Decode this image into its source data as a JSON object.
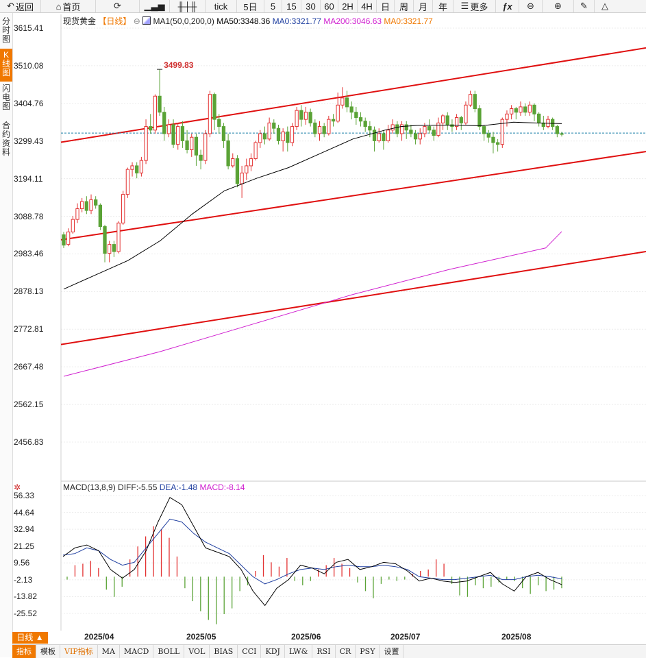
{
  "toolbar": {
    "back": "返回",
    "home": "首页",
    "tick": "tick",
    "p5d": "5日",
    "m5": "5",
    "m15": "15",
    "m30": "30",
    "m60": "60",
    "h2": "2H",
    "h4": "4H",
    "day": "日",
    "week": "周",
    "month": "月",
    "year": "年",
    "more": "更多"
  },
  "sidebar": {
    "timeshare": "分时图",
    "kline": "K线图",
    "flash": "闪电图",
    "contract": "合约资料"
  },
  "main_legend": {
    "symbol": "现货黄金",
    "period": "【日线】",
    "ma1": "MA1(50,0,200,0)",
    "ma50": "MA50:3348.36",
    "ma0": "MA0:3321.77",
    "ma200": "MA200:3046.63",
    "ma0b": "MA0:3321.77"
  },
  "macd_legend": {
    "name": "MACD(13,8,9)",
    "diff": "DIFF:-5.55",
    "dea": "DEA:-1.48",
    "macd": "MACD:-8.14"
  },
  "price_axis": [
    "3615.41",
    "3510.08",
    "3404.76",
    "3299.43",
    "3194.11",
    "3088.78",
    "2983.46",
    "2878.13",
    "2772.81",
    "2667.48",
    "2562.15",
    "2456.83"
  ],
  "macd_axis": [
    "56.33",
    "44.64",
    "32.94",
    "21.25",
    "9.56",
    "-2.13",
    "-13.82",
    "-25.52"
  ],
  "annotations": {
    "high": "3499.83"
  },
  "dates": [
    "2025/04",
    "2025/05",
    "2025/06",
    "2025/07",
    "2025/08"
  ],
  "range_button": "日线 ▲",
  "bottom_tabs": [
    "指标",
    "模板",
    "VIP指标",
    "MA",
    "MACD",
    "BOLL",
    "VOL",
    "BIAS",
    "CCI",
    "KDJ",
    "LW&",
    "RSI",
    "CR",
    "PSY",
    "设置"
  ],
  "colors": {
    "up": "#e33030",
    "down": "#5aa336",
    "accent": "#f07800",
    "ma50": "#000000",
    "ma200": "#d020d0",
    "dea": "#1f3fa0",
    "channel": "#e01010"
  },
  "chart_data": {
    "type": "candlestick",
    "symbol": "现货黄金",
    "ylim": [
      2400,
      3640
    ],
    "candles": [
      [
        3037,
        3008,
        3045,
        3000
      ],
      [
        3010,
        3045,
        3055,
        3005
      ],
      [
        3045,
        3080,
        3090,
        3040
      ],
      [
        3080,
        3110,
        3125,
        3070
      ],
      [
        3110,
        3130,
        3140,
        3100
      ],
      [
        3130,
        3105,
        3145,
        3095
      ],
      [
        3105,
        3135,
        3150,
        3095
      ],
      [
        3135,
        3120,
        3145,
        3110
      ],
      [
        3120,
        3060,
        3125,
        3050
      ],
      [
        3060,
        2985,
        3065,
        2960
      ],
      [
        2985,
        3010,
        3020,
        2960
      ],
      [
        3010,
        2990,
        3020,
        2975
      ],
      [
        2990,
        3070,
        3075,
        2985
      ],
      [
        3070,
        3150,
        3160,
        3065
      ],
      [
        3150,
        3220,
        3225,
        3140
      ],
      [
        3220,
        3230,
        3240,
        3200
      ],
      [
        3230,
        3210,
        3240,
        3195
      ],
      [
        3210,
        3245,
        3255,
        3200
      ],
      [
        3245,
        3340,
        3360,
        3235
      ],
      [
        3340,
        3330,
        3375,
        3320
      ],
      [
        3330,
        3425,
        3430,
        3320
      ],
      [
        3425,
        3380,
        3500,
        3370
      ],
      [
        3380,
        3320,
        3395,
        3300
      ],
      [
        3320,
        3345,
        3360,
        3310
      ],
      [
        3345,
        3290,
        3360,
        3280
      ],
      [
        3290,
        3340,
        3350,
        3275
      ],
      [
        3340,
        3300,
        3355,
        3280
      ],
      [
        3300,
        3275,
        3330,
        3265
      ],
      [
        3275,
        3310,
        3320,
        3255
      ],
      [
        3310,
        3260,
        3320,
        3230
      ],
      [
        3260,
        3245,
        3275,
        3220
      ],
      [
        3245,
        3320,
        3330,
        3235
      ],
      [
        3320,
        3430,
        3440,
        3310
      ],
      [
        3430,
        3360,
        3435,
        3330
      ],
      [
        3360,
        3340,
        3375,
        3320
      ],
      [
        3340,
        3300,
        3350,
        3280
      ],
      [
        3300,
        3230,
        3320,
        3220
      ],
      [
        3230,
        3250,
        3265,
        3225
      ],
      [
        3250,
        3180,
        3260,
        3170
      ],
      [
        3180,
        3210,
        3230,
        3140
      ],
      [
        3210,
        3230,
        3250,
        3190
      ],
      [
        3230,
        3250,
        3265,
        3215
      ],
      [
        3250,
        3295,
        3300,
        3245
      ],
      [
        3295,
        3320,
        3330,
        3280
      ],
      [
        3320,
        3305,
        3340,
        3290
      ],
      [
        3305,
        3350,
        3365,
        3300
      ],
      [
        3350,
        3335,
        3360,
        3320
      ],
      [
        3335,
        3300,
        3345,
        3290
      ],
      [
        3300,
        3325,
        3335,
        3270
      ],
      [
        3325,
        3295,
        3340,
        3270
      ],
      [
        3295,
        3340,
        3350,
        3285
      ],
      [
        3340,
        3385,
        3395,
        3330
      ],
      [
        3385,
        3360,
        3400,
        3340
      ],
      [
        3360,
        3380,
        3395,
        3345
      ],
      [
        3380,
        3350,
        3390,
        3340
      ],
      [
        3350,
        3320,
        3360,
        3310
      ],
      [
        3320,
        3340,
        3355,
        3300
      ],
      [
        3340,
        3320,
        3350,
        3310
      ],
      [
        3320,
        3360,
        3370,
        3315
      ],
      [
        3360,
        3355,
        3375,
        3340
      ],
      [
        3355,
        3400,
        3435,
        3350
      ],
      [
        3400,
        3420,
        3450,
        3390
      ],
      [
        3420,
        3395,
        3440,
        3380
      ],
      [
        3395,
        3380,
        3410,
        3360
      ],
      [
        3380,
        3365,
        3395,
        3345
      ],
      [
        3365,
        3355,
        3380,
        3340
      ],
      [
        3355,
        3340,
        3365,
        3325
      ],
      [
        3340,
        3330,
        3355,
        3310
      ],
      [
        3330,
        3300,
        3340,
        3270
      ],
      [
        3300,
        3320,
        3335,
        3295
      ],
      [
        3320,
        3300,
        3330,
        3275
      ],
      [
        3300,
        3330,
        3345,
        3295
      ],
      [
        3330,
        3345,
        3360,
        3320
      ],
      [
        3345,
        3320,
        3355,
        3310
      ],
      [
        3320,
        3345,
        3355,
        3300
      ],
      [
        3345,
        3330,
        3355,
        3305
      ],
      [
        3330,
        3320,
        3345,
        3310
      ],
      [
        3320,
        3305,
        3330,
        3290
      ],
      [
        3305,
        3320,
        3335,
        3290
      ],
      [
        3320,
        3340,
        3350,
        3310
      ],
      [
        3340,
        3330,
        3360,
        3320
      ],
      [
        3330,
        3315,
        3340,
        3300
      ],
      [
        3315,
        3350,
        3365,
        3310
      ],
      [
        3350,
        3370,
        3375,
        3330
      ],
      [
        3370,
        3345,
        3380,
        3330
      ],
      [
        3345,
        3340,
        3360,
        3325
      ],
      [
        3340,
        3365,
        3375,
        3330
      ],
      [
        3365,
        3350,
        3370,
        3330
      ],
      [
        3350,
        3400,
        3410,
        3345
      ],
      [
        3400,
        3430,
        3440,
        3395
      ],
      [
        3430,
        3390,
        3440,
        3380
      ],
      [
        3390,
        3340,
        3400,
        3330
      ],
      [
        3340,
        3320,
        3345,
        3300
      ],
      [
        3320,
        3310,
        3330,
        3295
      ],
      [
        3310,
        3295,
        3325,
        3265
      ],
      [
        3295,
        3290,
        3305,
        3270
      ],
      [
        3290,
        3360,
        3365,
        3280
      ],
      [
        3360,
        3375,
        3385,
        3340
      ],
      [
        3375,
        3390,
        3400,
        3360
      ],
      [
        3390,
        3380,
        3395,
        3360
      ],
      [
        3380,
        3395,
        3410,
        3370
      ],
      [
        3395,
        3380,
        3405,
        3370
      ],
      [
        3380,
        3400,
        3410,
        3370
      ],
      [
        3400,
        3375,
        3405,
        3355
      ],
      [
        3375,
        3350,
        3380,
        3340
      ],
      [
        3350,
        3340,
        3370,
        3330
      ],
      [
        3340,
        3360,
        3370,
        3335
      ],
      [
        3360,
        3340,
        3365,
        3330
      ],
      [
        3340,
        3320,
        3345,
        3310
      ],
      [
        3320,
        3318,
        3325,
        3312
      ]
    ],
    "ma50": [
      [
        0,
        2885
      ],
      [
        10,
        2925
      ],
      [
        20,
        2965
      ],
      [
        30,
        3020
      ],
      [
        40,
        3095
      ],
      [
        50,
        3160
      ],
      [
        60,
        3195
      ],
      [
        70,
        3225
      ],
      [
        80,
        3265
      ],
      [
        90,
        3305
      ],
      [
        100,
        3330
      ],
      [
        105,
        3340
      ],
      [
        110,
        3343
      ],
      [
        120,
        3344
      ],
      [
        130,
        3342
      ],
      [
        140,
        3352
      ],
      [
        147,
        3350
      ],
      [
        155,
        3348
      ]
    ],
    "ma200": [
      [
        0,
        2641
      ],
      [
        30,
        2710
      ],
      [
        60,
        2790
      ],
      [
        90,
        2870
      ],
      [
        120,
        2940
      ],
      [
        150,
        3000
      ],
      [
        155,
        3046
      ]
    ],
    "ma0_value": 3321.77,
    "channel_lines": [
      {
        "from": [
          89,
          3296
        ],
        "to": [
          943,
          3560
        ]
      },
      {
        "from": [
          89,
          3023
        ],
        "to": [
          943,
          3270
        ]
      },
      {
        "from": [
          89,
          2730
        ],
        "to": [
          943,
          2990
        ]
      }
    ],
    "macd": {
      "ylim": [
        -34,
        62
      ],
      "diff": [
        [
          0,
          14.0
        ],
        [
          5,
          20.0
        ],
        [
          10,
          22.0
        ],
        [
          15,
          18.0
        ],
        [
          20,
          5.0
        ],
        [
          25,
          -1.0
        ],
        [
          30,
          5.0
        ],
        [
          35,
          18.0
        ],
        [
          40,
          38.0
        ],
        [
          45,
          55.0
        ],
        [
          50,
          50.0
        ],
        [
          55,
          35.0
        ],
        [
          60,
          20.0
        ],
        [
          65,
          17.0
        ],
        [
          70,
          14.0
        ],
        [
          75,
          5.0
        ],
        [
          80,
          -10.0
        ],
        [
          85,
          -20.0
        ],
        [
          90,
          -8.0
        ],
        [
          95,
          -2.0
        ],
        [
          100,
          8.0
        ],
        [
          105,
          6.0
        ],
        [
          110,
          2.0
        ],
        [
          115,
          10.0
        ],
        [
          120,
          12.0
        ],
        [
          125,
          5.0
        ],
        [
          130,
          7.0
        ],
        [
          135,
          10.0
        ],
        [
          140,
          9.0
        ],
        [
          145,
          4.0
        ],
        [
          150,
          -3.0
        ],
        [
          155,
          -1.0
        ],
        [
          160,
          -3.0
        ],
        [
          165,
          -4.0
        ],
        [
          170,
          -3.0
        ],
        [
          175,
          0.0
        ],
        [
          180,
          3.0
        ],
        [
          185,
          -5.0
        ],
        [
          190,
          -10.0
        ],
        [
          195,
          0.0
        ],
        [
          200,
          3.0
        ],
        [
          205,
          -2.0
        ],
        [
          210,
          -5.5
        ]
      ],
      "dea": [
        [
          0,
          15.0
        ],
        [
          5,
          16.0
        ],
        [
          10,
          20.0
        ],
        [
          15,
          18.0
        ],
        [
          20,
          12.0
        ],
        [
          25,
          8.0
        ],
        [
          30,
          10.0
        ],
        [
          35,
          20.0
        ],
        [
          40,
          30.0
        ],
        [
          45,
          40.0
        ],
        [
          50,
          38.0
        ],
        [
          55,
          30.0
        ],
        [
          60,
          24.0
        ],
        [
          65,
          20.0
        ],
        [
          70,
          16.0
        ],
        [
          75,
          8.0
        ],
        [
          80,
          0.0
        ],
        [
          85,
          -5.0
        ],
        [
          90,
          -2.0
        ],
        [
          95,
          2.0
        ],
        [
          100,
          5.0
        ],
        [
          105,
          6.0
        ],
        [
          110,
          5.0
        ],
        [
          115,
          7.0
        ],
        [
          120,
          8.0
        ],
        [
          125,
          7.0
        ],
        [
          130,
          7.0
        ],
        [
          135,
          8.0
        ],
        [
          140,
          7.0
        ],
        [
          145,
          5.0
        ],
        [
          150,
          0.0
        ],
        [
          155,
          -1.0
        ],
        [
          160,
          -2.0
        ],
        [
          165,
          -2.0
        ],
        [
          170,
          -1.0
        ],
        [
          175,
          0.0
        ],
        [
          180,
          1.0
        ],
        [
          185,
          -2.0
        ],
        [
          190,
          -2.0
        ],
        [
          195,
          0.0
        ],
        [
          200,
          1.0
        ],
        [
          205,
          0.0
        ],
        [
          210,
          -1.48
        ]
      ],
      "hist": [
        -2,
        8,
        9,
        11,
        6,
        -9,
        -14,
        -7,
        12,
        21,
        28,
        35,
        33,
        27,
        14,
        -8,
        -17,
        -24,
        -30,
        -33,
        -26,
        -22,
        -10,
        -6,
        4,
        15,
        10,
        7,
        13,
        -3,
        -6,
        -3,
        5,
        8,
        13,
        9,
        6,
        -4,
        -10,
        -15,
        -5,
        -2,
        -3,
        -2,
        2,
        4,
        5,
        12,
        9,
        -5,
        -13,
        -14,
        -6,
        -8,
        -7,
        -4,
        -2,
        -3,
        -8,
        -12,
        -6,
        -10,
        -9,
        -8
      ]
    }
  }
}
